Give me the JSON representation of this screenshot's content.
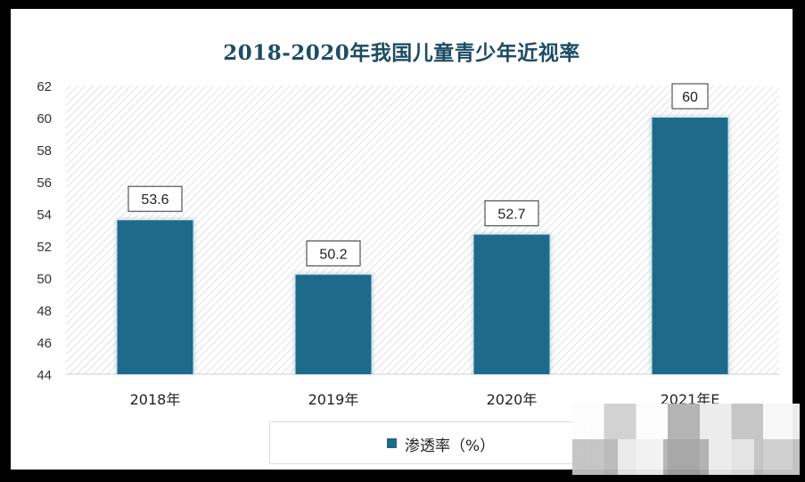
{
  "chart_data": {
    "type": "bar",
    "title": "2018-2020年我国儿童青少年近视率",
    "categories": [
      "2018年",
      "2019年",
      "2020年",
      "2021年E"
    ],
    "series": [
      {
        "name": "渗透率（%）",
        "values": [
          53.6,
          50.2,
          52.7,
          60
        ]
      }
    ],
    "data_labels": [
      "53.6",
      "50.2",
      "52.7",
      "60"
    ],
    "y_ticks": [
      "44",
      "46",
      "48",
      "50",
      "52",
      "54",
      "56",
      "58",
      "60",
      "62"
    ],
    "ylim": [
      44,
      62
    ],
    "xlabel": "",
    "ylabel": "",
    "grid": false,
    "plot_background": "diagonal hatch",
    "legend_position": "bottom",
    "bar_color": "#1e6a8a"
  }
}
